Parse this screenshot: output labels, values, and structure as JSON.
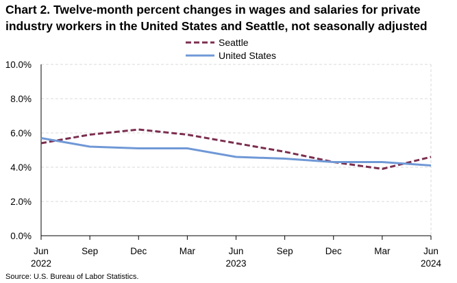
{
  "chart_data": {
    "type": "line",
    "title": "Chart 2. Twelve-month percent changes in wages and salaries for private industry workers in the United States and Seattle, not seasonally adjusted",
    "x": [
      "Jun",
      "Sep",
      "Dec",
      "Mar",
      "Jun",
      "Sep",
      "Dec",
      "Mar",
      "Jun"
    ],
    "x_year_labels": [
      "2022",
      "",
      "",
      "",
      "2023",
      "",
      "",
      "",
      "2024"
    ],
    "series": [
      {
        "name": "Seattle",
        "color": "#7B2E4F",
        "style": "dashed",
        "values": [
          5.4,
          5.9,
          6.2,
          5.9,
          5.4,
          4.9,
          4.3,
          3.9,
          4.6
        ]
      },
      {
        "name": "United States",
        "color": "#6F98D6",
        "style": "solid",
        "values": [
          5.7,
          5.2,
          5.1,
          5.1,
          4.6,
          4.5,
          4.3,
          4.3,
          4.1
        ]
      }
    ],
    "ylim": [
      0,
      10
    ],
    "yticks": [
      "0.0%",
      "2.0%",
      "4.0%",
      "6.0%",
      "8.0%",
      "10.0%"
    ],
    "ytick_values": [
      0,
      2,
      4,
      6,
      8,
      10
    ],
    "xlabel": "",
    "ylabel": "",
    "grid": true,
    "legend": "top-center",
    "source": "Source: U.S. Bureau of Labor Statistics."
  }
}
